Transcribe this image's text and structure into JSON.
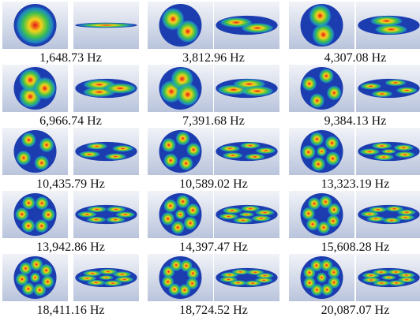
{
  "panels": [
    {
      "label": "1,648.73 Hz"
    },
    {
      "label": "3,812.96 Hz"
    },
    {
      "label": "4,307.08 Hz"
    },
    {
      "label": "6,966.74 Hz"
    },
    {
      "label": "7,391.68 Hz"
    },
    {
      "label": "9,384.13 Hz"
    },
    {
      "label": "10,435.79 Hz"
    },
    {
      "label": "10,589.02 Hz"
    },
    {
      "label": "13,323.19 Hz"
    },
    {
      "label": "13,942.86 Hz"
    },
    {
      "label": "14,397.47 Hz"
    },
    {
      "label": "15,608.28 Hz"
    },
    {
      "label": "18,411.16 Hz"
    },
    {
      "label": "18,724.52 Hz"
    },
    {
      "label": "20,087.07 Hz"
    }
  ]
}
